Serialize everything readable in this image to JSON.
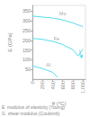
{
  "chart_data": {
    "type": "line",
    "title": "",
    "xlabel": "θ (°C)",
    "ylabel": "E (GPa)",
    "xlim": [
      0,
      1050
    ],
    "ylim": [
      0,
      380
    ],
    "xticks": [
      0,
      200,
      400,
      600,
      800,
      1000
    ],
    "yticks": [
      50,
      100,
      150,
      200,
      250,
      300,
      350
    ],
    "grid": false,
    "color": "#55ddee",
    "series": [
      {
        "name": "Mo",
        "x": [
          0,
          200,
          400,
          600,
          800,
          1000
        ],
        "values": [
          325,
          320,
          315,
          305,
          290,
          270
        ]
      },
      {
        "name": "Fe",
        "x": [
          0,
          200,
          400,
          600,
          800,
          900,
          1000
        ],
        "values": [
          210,
          205,
          195,
          178,
          152,
          120,
          155
        ]
      },
      {
        "name": "Al",
        "x": [
          0,
          200,
          400,
          500
        ],
        "values": [
          68,
          55,
          35,
          10
        ]
      }
    ],
    "annotations": [
      {
        "text": "Mo",
        "x": 530,
        "y": 323
      },
      {
        "text": "Fe",
        "x": 420,
        "y": 193
      },
      {
        "text": "Al",
        "x": 270,
        "y": 58
      }
    ],
    "arrows": [
      {
        "x": [
          935,
          980
        ],
        "y": [
          150,
          108
        ]
      }
    ],
    "notes": [
      "E  modulus of elasticity (Young)",
      "G  shear modulus (Coulomb)"
    ]
  }
}
